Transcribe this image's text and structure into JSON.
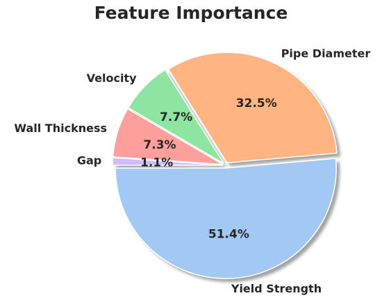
{
  "chart_data": {
    "type": "pie",
    "title": "Feature Importance",
    "slices": [
      {
        "label": "Yield Strength",
        "value": 51.4,
        "pct_label": "51.4%",
        "color": "#a1c9f4"
      },
      {
        "label": "Pipe Diameter",
        "value": 32.5,
        "pct_label": "32.5%",
        "color": "#ffb482"
      },
      {
        "label": "Velocity",
        "value": 7.7,
        "pct_label": "7.7%",
        "color": "#8de5a1"
      },
      {
        "label": "Wall Thickness",
        "value": 7.3,
        "pct_label": "7.3%",
        "color": "#ff9f9b"
      },
      {
        "label": "Gap",
        "value": 1.1,
        "pct_label": "1.1%",
        "color": "#d0bbff"
      }
    ],
    "start_angle_deg": 180,
    "direction": "counterclockwise",
    "shadow": true,
    "legend": "none"
  }
}
